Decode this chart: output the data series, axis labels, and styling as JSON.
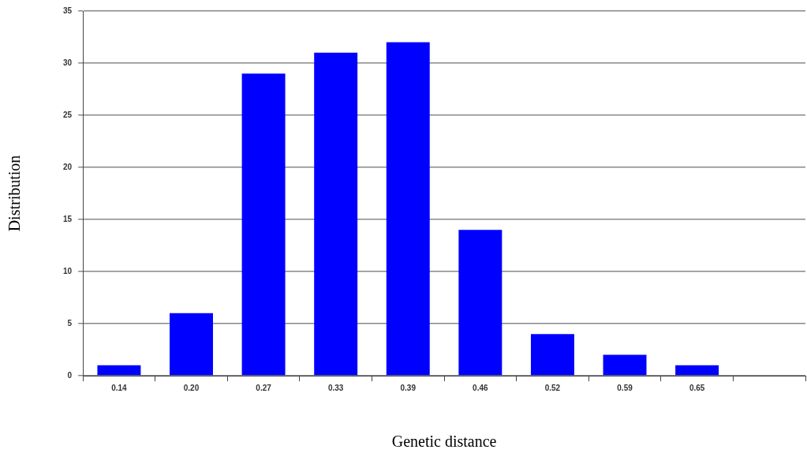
{
  "chart_data": {
    "type": "bar",
    "xlabel": "Genetic distance",
    "ylabel": "Distribution",
    "categories": [
      "0.14",
      "0.20",
      "0.27",
      "0.33",
      "0.39",
      "0.46",
      "0.52",
      "0.59",
      "0.65",
      null
    ],
    "values": [
      1,
      6,
      29,
      31,
      32,
      14,
      4,
      2,
      1,
      null
    ],
    "color": "#0000ff",
    "ylim": [
      0,
      35
    ],
    "yticks": [
      0,
      5,
      10,
      15,
      20,
      25,
      30,
      35
    ],
    "grid": "y"
  }
}
